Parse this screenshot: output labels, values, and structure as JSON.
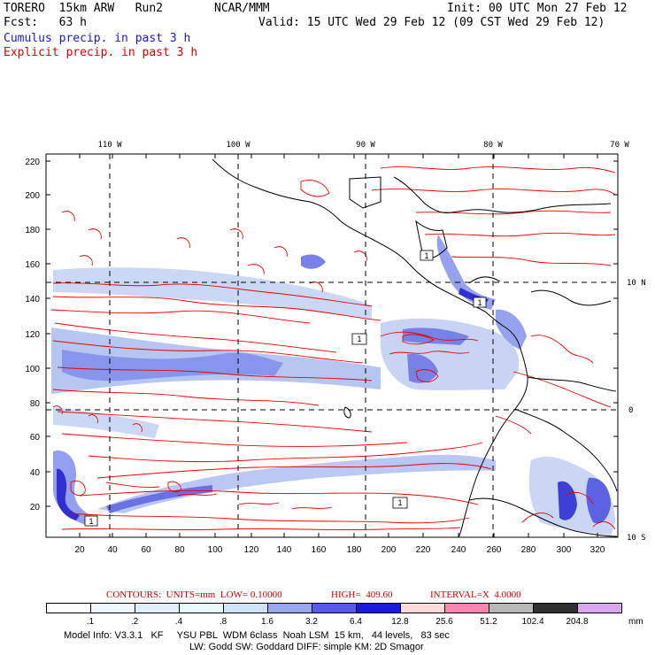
{
  "header": {
    "model": "TORERO  15km ARW   Run2",
    "org": "NCAR/MMM",
    "init": "Init: 00 UTC Mon 27 Feb 12",
    "fcst": "Fcst:   63 h",
    "valid": "Valid: 15 UTC Wed 29 Feb 12 (09 CST Wed 29 Feb 12)",
    "cumulus": "Cumulus precip. in past 3 h",
    "explicit": "Explicit precip. in past 3 h"
  },
  "map": {
    "top_lon_labels": [
      "110 W",
      "100 W",
      "90 W",
      "80 W",
      "70 W"
    ],
    "right_lat_labels": [
      "10 N",
      "0",
      "10 S"
    ],
    "left_y_ticks": [
      "220",
      "200",
      "180",
      "160",
      "140",
      "120",
      "100",
      "80",
      "60",
      "40",
      "20"
    ],
    "bottom_x_ticks": [
      "20",
      "40",
      "60",
      "80",
      "100",
      "120",
      "140",
      "160",
      "180",
      "200",
      "220",
      "240",
      "260",
      "280",
      "300",
      "320"
    ],
    "box_labels": [
      "1",
      "1",
      "1",
      "1",
      "1"
    ],
    "colors": {
      "explicit": "#ee0000",
      "cumulus_light": "#b0c4f0",
      "cumulus_mid": "#6a78e8",
      "cumulus_dark": "#1a1acc",
      "coast": "#000000"
    }
  },
  "contours": {
    "label": "CONTOURS:  UNITS=mm  LOW= 0.10000",
    "high": "HIGH=  409.60",
    "interval": "INTERVAL=X  4.0000"
  },
  "legend": {
    "labels": [
      ".1",
      ".2",
      ".4",
      ".8",
      "1.6",
      "3.2",
      "6.4",
      "12.8",
      "25.6",
      "51.2",
      "102.4",
      "204.8"
    ],
    "units": "mm",
    "colors": [
      "#ffffff",
      "#f0f8ff",
      "#e0f0ff",
      "#e8fcfc",
      "#d0e4f8",
      "#9aa6f2",
      "#5a5af0",
      "#1a1ae0",
      "#ffdcdc",
      "#ff88b0",
      "#b8b8b8",
      "#303030",
      "#d8a8f0"
    ]
  },
  "footer": {
    "line1": "Model Info: V3.3.1   KF     YSU PBL  WDM 6class  Noah LSM  15 km,   44 levels,   83 sec",
    "line2": "LW: Godd SW: Goddard DIFF: simple KM: 2D Smagor"
  }
}
